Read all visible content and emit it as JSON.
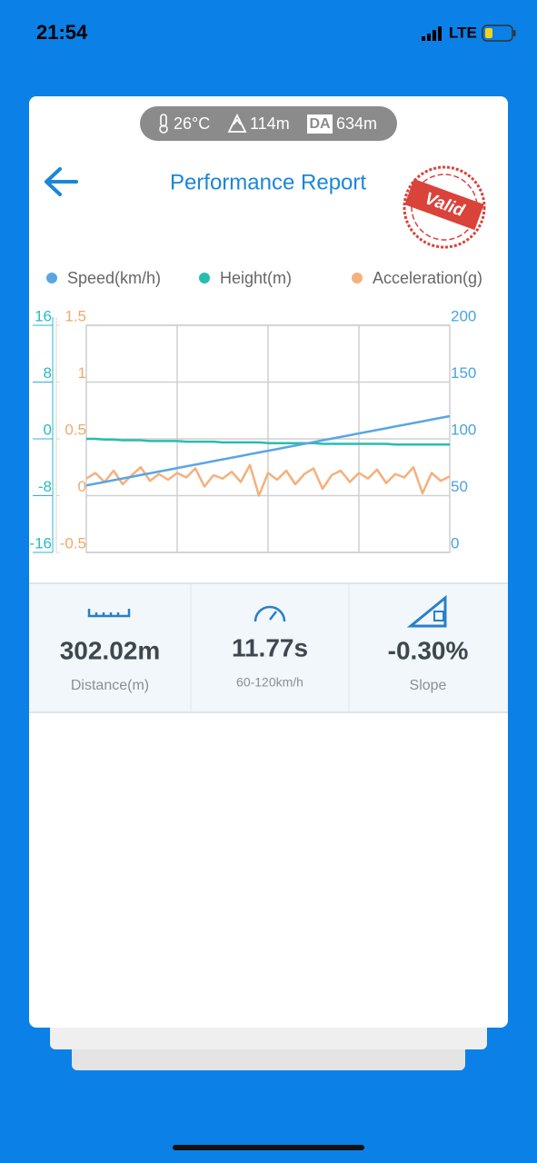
{
  "status_bar": {
    "time": "21:54",
    "network": "LTE"
  },
  "conditions": {
    "temperature": "26°C",
    "altitude": "114m",
    "density_altitude_badge": "DA",
    "density_altitude": "634m"
  },
  "header": {
    "title": "Performance Report",
    "stamp": "Valid"
  },
  "chart_data": {
    "type": "line",
    "ylim": [
      -16,
      16
    ],
    "yticks": [
      -16,
      -8,
      0,
      8,
      16
    ],
    "y_color": "#2bb8c9",
    "y3lim": [
      -0.5,
      1.5
    ],
    "y3ticks": [
      -0.5,
      0,
      0.5,
      1,
      1.5
    ],
    "y3_color": "#f2a86a",
    "y2lim": [
      0,
      200
    ],
    "y2ticks": [
      0,
      50,
      100,
      150,
      200
    ],
    "y2_color": "#4aa3e0",
    "grid": true,
    "legend": "top",
    "series": [
      {
        "name": "Speed(km/h)",
        "color": "#5aa6e4",
        "axis": "y2",
        "values": [
          59,
          60.5,
          62,
          63.6,
          65.1,
          66.6,
          68.2,
          69.7,
          71.2,
          72.7,
          74.3,
          75.8,
          77.3,
          78.8,
          80.4,
          81.9,
          83.4,
          84.9,
          86.5,
          88,
          89.5,
          91,
          92.6,
          94.1,
          95.6,
          97.1,
          98.7,
          100.2,
          101.7,
          103.2,
          104.8,
          106.3,
          107.8,
          109.3,
          110.9,
          112.4,
          113.9,
          115.4,
          117,
          118.5,
          120
        ]
      },
      {
        "name": "Height(m)",
        "color": "#27bdb0",
        "axis": "y",
        "values": [
          0,
          0,
          -0.1,
          -0.1,
          -0.2,
          -0.2,
          -0.2,
          -0.3,
          -0.3,
          -0.3,
          -0.3,
          -0.4,
          -0.4,
          -0.4,
          -0.4,
          -0.5,
          -0.5,
          -0.5,
          -0.5,
          -0.5,
          -0.6,
          -0.6,
          -0.6,
          -0.6,
          -0.6,
          -0.6,
          -0.7,
          -0.7,
          -0.7,
          -0.7,
          -0.7,
          -0.7,
          -0.7,
          -0.7,
          -0.8,
          -0.8,
          -0.8,
          -0.8,
          -0.8,
          -0.8,
          -0.8
        ]
      },
      {
        "name": "Acceleration(g)",
        "color": "#f5b07c",
        "axis": "y3",
        "values": [
          0.15,
          0.2,
          0.12,
          0.22,
          0.1,
          0.18,
          0.25,
          0.13,
          0.19,
          0.14,
          0.2,
          0.16,
          0.24,
          0.08,
          0.18,
          0.15,
          0.21,
          0.12,
          0.27,
          0.0,
          0.2,
          0.14,
          0.22,
          0.1,
          0.19,
          0.24,
          0.06,
          0.18,
          0.22,
          0.12,
          0.2,
          0.15,
          0.23,
          0.11,
          0.19,
          0.16,
          0.25,
          0.02,
          0.2,
          0.13,
          0.17
        ]
      }
    ]
  },
  "stats": [
    {
      "value": "302.02m",
      "label": "Distance(m)"
    },
    {
      "value": "11.77s",
      "label": "60-120km/h"
    },
    {
      "value": "-0.30%",
      "label": "Slope"
    }
  ]
}
